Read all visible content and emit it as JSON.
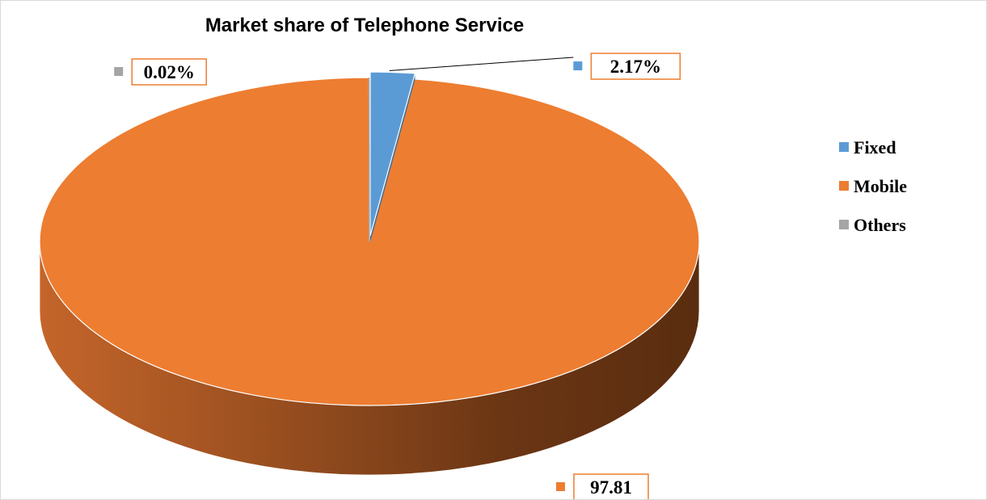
{
  "chart_data": {
    "type": "pie",
    "style": "3d",
    "title": "Market share of Telephone Service",
    "categories": [
      "Fixed",
      "Mobile",
      "Others"
    ],
    "values": [
      2.17,
      97.81,
      0.02
    ],
    "data_labels": [
      "2.17%",
      "97.81",
      "0.02%"
    ],
    "colors": [
      "#5b9bd5",
      "#ed7d31",
      "#a5a5a5"
    ],
    "exploded_slice": "Fixed",
    "legend_position": "right",
    "label_border_color": "#ed7d31"
  }
}
